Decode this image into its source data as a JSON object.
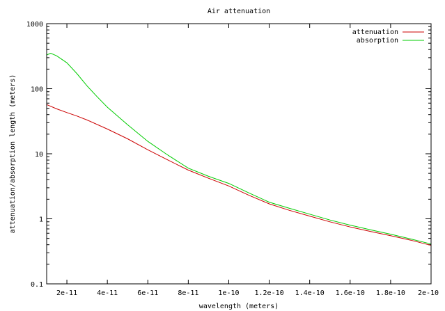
{
  "chart_data": {
    "type": "line",
    "title": "Air attenuation",
    "xlabel": "wavelength (meters)",
    "ylabel": "attenuation/absorption length (meters)",
    "xlim": [
      1e-11,
      2e-10
    ],
    "ylim": [
      0.1,
      1000
    ],
    "yscale": "log",
    "grid": false,
    "legend_position": "top-right",
    "x_ticks": [
      2e-11,
      4e-11,
      6e-11,
      8e-11,
      1e-10,
      1.2e-10,
      1.4e-10,
      1.6e-10,
      1.8e-10,
      2e-10
    ],
    "x_tick_labels": [
      "2e-11",
      "4e-11",
      "6e-11",
      "8e-11",
      "1e-10",
      "1.2e-10",
      "1.4e-10",
      "1.6e-10",
      "1.8e-10",
      "2e-10"
    ],
    "y_ticks": [
      0.1,
      1,
      10,
      100,
      1000
    ],
    "y_tick_labels": [
      "0.1",
      "1",
      "10",
      "100",
      "1000"
    ],
    "series": [
      {
        "name": "attenuation",
        "color": "#cc0000",
        "x": [
          1e-11,
          1.5e-11,
          2e-11,
          2.5e-11,
          3e-11,
          4e-11,
          5e-11,
          6e-11,
          7e-11,
          8e-11,
          9e-11,
          1e-10,
          1.1e-10,
          1.2e-10,
          1.3e-10,
          1.4e-10,
          1.5e-10,
          1.6e-10,
          1.7e-10,
          1.8e-10,
          1.9e-10,
          2e-10
        ],
        "y": [
          57,
          49,
          43,
          38,
          33,
          24,
          17,
          11.5,
          8,
          5.6,
          4.2,
          3.2,
          2.3,
          1.7,
          1.35,
          1.1,
          0.9,
          0.75,
          0.64,
          0.55,
          0.47,
          0.39
        ]
      },
      {
        "name": "absorption",
        "color": "#00cc00",
        "x": [
          1e-11,
          1.2e-11,
          1.5e-11,
          2e-11,
          2.5e-11,
          3e-11,
          3.5e-11,
          4e-11,
          5e-11,
          6e-11,
          7e-11,
          8e-11,
          9e-11,
          1e-10,
          1.1e-10,
          1.2e-10,
          1.3e-10,
          1.4e-10,
          1.5e-10,
          1.6e-10,
          1.7e-10,
          1.8e-10,
          1.9e-10,
          2e-10
        ],
        "y": [
          330,
          350,
          320,
          250,
          170,
          110,
          75,
          52,
          28,
          15.5,
          9.5,
          6,
          4.5,
          3.5,
          2.5,
          1.8,
          1.45,
          1.18,
          0.96,
          0.8,
          0.68,
          0.58,
          0.49,
          0.41
        ]
      }
    ]
  }
}
